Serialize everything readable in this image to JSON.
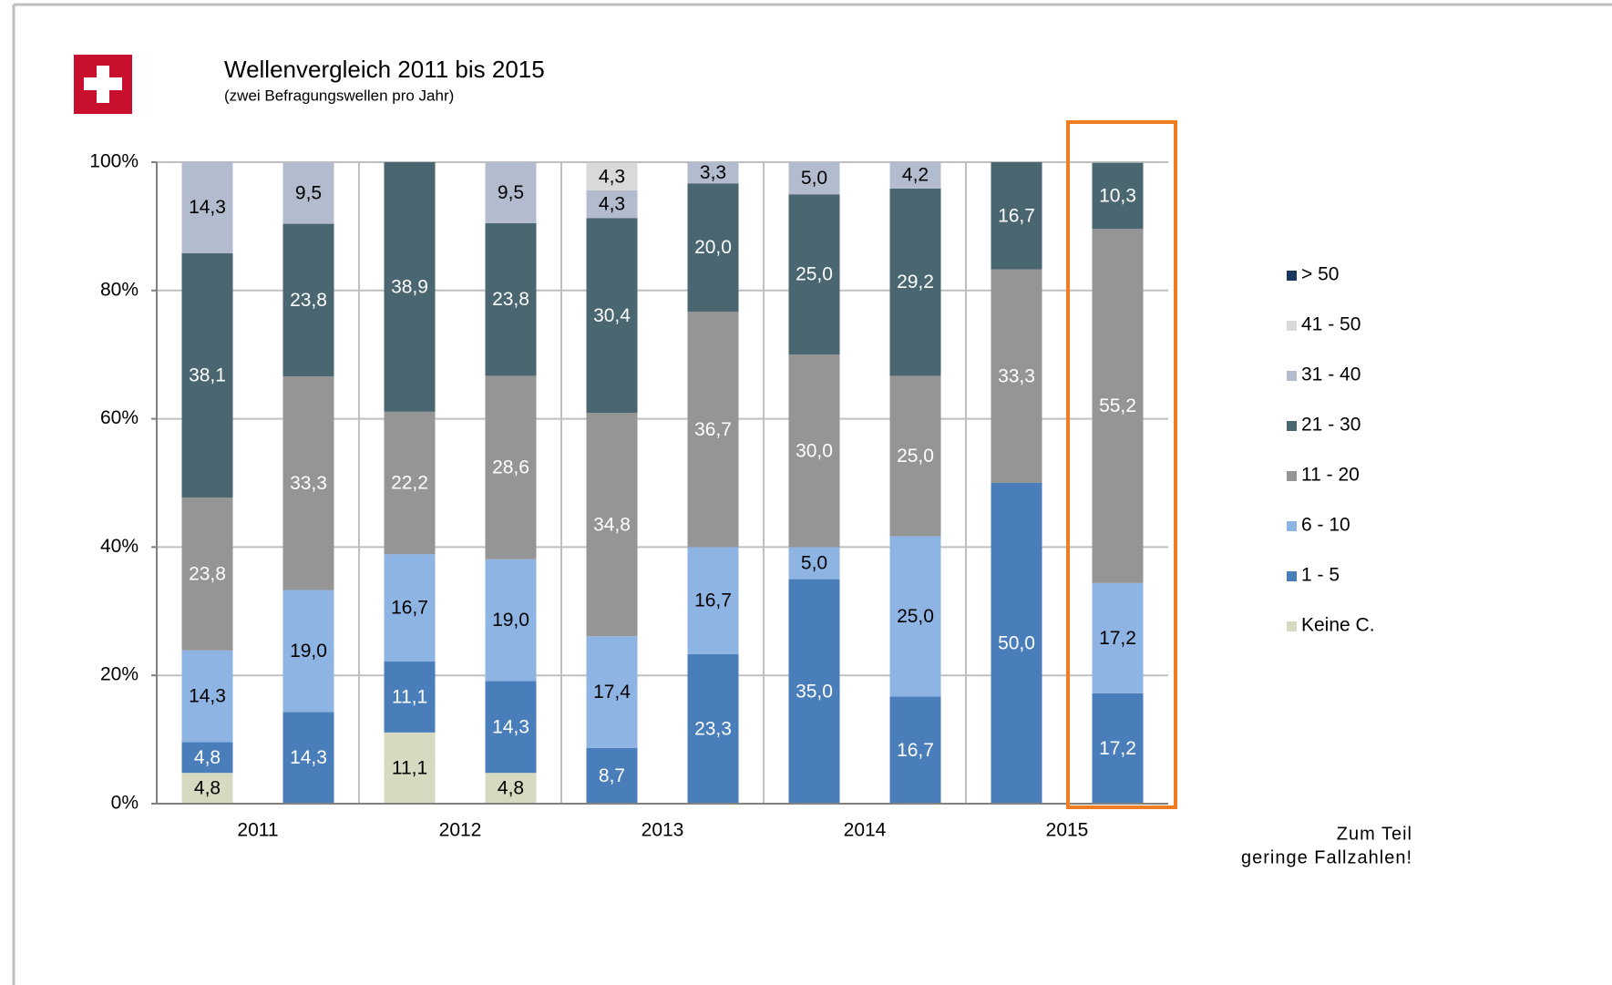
{
  "chart_data": {
    "type": "stacked_bar",
    "title": "Wellenvergleich 2011 bis 2015",
    "subtitle": "(zwei Befragungswellen pro Jahr)",
    "note": [
      "Zum Teil",
      "geringe Fallzahlen!"
    ],
    "groups": [
      "2011",
      "2012",
      "2013",
      "2014",
      "2015"
    ],
    "bars_per_group": 2,
    "ylim": [
      0,
      100
    ],
    "yticks": [
      {
        "value": 0,
        "label": "0%"
      },
      {
        "value": 20,
        "label": "20%"
      },
      {
        "value": 40,
        "label": "40%"
      },
      {
        "value": 60,
        "label": "60%"
      },
      {
        "value": 80,
        "label": "80%"
      },
      {
        "value": 100,
        "label": "100%"
      }
    ],
    "grid": true,
    "legend": "right",
    "series": [
      {
        "name": "Keine C.",
        "color": "#d7d9c0",
        "label_color": "#000000",
        "values": [
          4.8,
          null,
          11.1,
          4.8,
          null,
          null,
          null,
          null,
          null,
          null
        ],
        "value_labels": [
          "4,8",
          null,
          "11,1",
          "4,8",
          null,
          null,
          null,
          null,
          null,
          null
        ]
      },
      {
        "name": "1 - 5",
        "color": "#4a7ebb",
        "label_color": "#ffffff",
        "values": [
          4.8,
          14.3,
          11.1,
          14.3,
          8.7,
          23.3,
          35.0,
          16.7,
          50.0,
          17.2
        ],
        "value_labels": [
          "4,8",
          "14,3",
          "11,1",
          "14,3",
          "8,7",
          "23,3",
          "35,0",
          "16,7",
          "50,0",
          "17,2"
        ]
      },
      {
        "name": "6 - 10",
        "color": "#8eb4e3",
        "label_color": "#000000",
        "values": [
          14.3,
          19.0,
          16.7,
          19.0,
          17.4,
          16.7,
          5.0,
          25.0,
          null,
          17.2
        ],
        "value_labels": [
          "14,3",
          "19,0",
          "16,7",
          "19,0",
          "17,4",
          "16,7",
          "5,0",
          "25,0",
          null,
          "17,2"
        ]
      },
      {
        "name": "11 - 20",
        "color": "#959595",
        "label_color": "#ffffff",
        "values": [
          23.8,
          33.3,
          22.2,
          28.6,
          34.8,
          36.7,
          30.0,
          25.0,
          33.3,
          55.2
        ],
        "value_labels": [
          "23,8",
          "33,3",
          "22,2",
          "28,6",
          "34,8",
          "36,7",
          "30,0",
          "25,0",
          "33,3",
          "55,2"
        ]
      },
      {
        "name": "21 - 30",
        "color": "#4a6670",
        "label_color": "#ffffff",
        "values": [
          38.1,
          23.8,
          38.9,
          23.8,
          30.4,
          20.0,
          25.0,
          29.2,
          16.7,
          10.3
        ],
        "value_labels": [
          "38,1",
          "23,8",
          "38,9",
          "23,8",
          "30,4",
          "20,0",
          "25,0",
          "29,2",
          "16,7",
          "10,3"
        ]
      },
      {
        "name": "31 - 40",
        "color": "#b3bccf",
        "label_color": "#000000",
        "values": [
          14.3,
          9.5,
          null,
          9.5,
          4.3,
          3.3,
          5.0,
          4.2,
          null,
          null
        ],
        "value_labels": [
          "14,3",
          "9,5",
          null,
          "9,5",
          "4,3",
          "3,3",
          "5,0",
          "4,2",
          null,
          null
        ]
      },
      {
        "name": "41 - 50",
        "color": "#d9d9d9",
        "label_color": "#000000",
        "values": [
          null,
          null,
          null,
          null,
          4.3,
          null,
          null,
          null,
          null,
          null
        ],
        "value_labels": [
          null,
          null,
          null,
          null,
          "4,3",
          null,
          null,
          null,
          null,
          null
        ]
      },
      {
        "name": "> 50",
        "color": "#17375e",
        "label_color": "#ffffff",
        "values": [
          null,
          null,
          null,
          null,
          null,
          null,
          null,
          null,
          null,
          null
        ],
        "value_labels": [
          null,
          null,
          null,
          null,
          null,
          null,
          null,
          null,
          null,
          null
        ]
      }
    ]
  }
}
